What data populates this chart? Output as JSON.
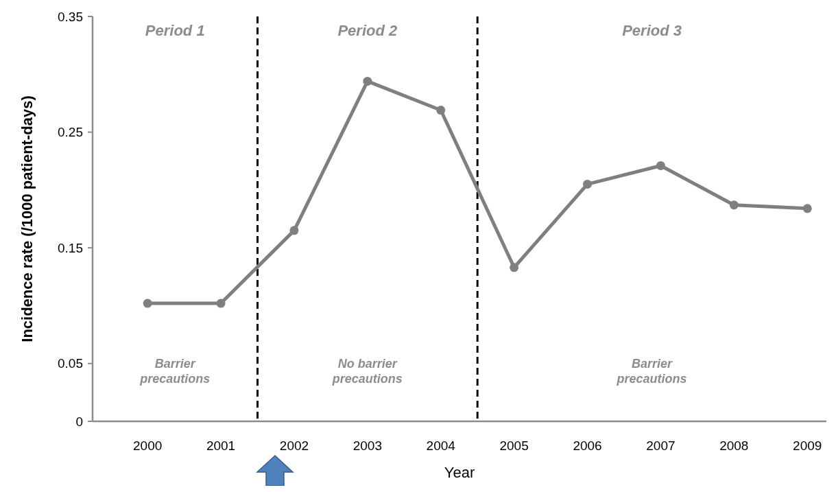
{
  "chart_data": {
    "type": "line",
    "xlabel": "Year",
    "ylabel": "Incidence rate (/1000 patient-days)",
    "x": [
      2000,
      2001,
      2002,
      2003,
      2004,
      2005,
      2006,
      2007,
      2008,
      2009
    ],
    "xlim": [
      1999.25,
      2009.26
    ],
    "xticks": [
      2000,
      2001,
      2002,
      2003,
      2004,
      2005,
      2006,
      2007,
      2008,
      2009
    ],
    "ylim": [
      0,
      0.35
    ],
    "yticks": [
      0,
      0.05,
      0.15,
      0.25,
      0.35
    ],
    "series": [
      {
        "color": "#7f7f7f",
        "values": [
          0.102,
          0.102,
          0.165,
          0.294,
          0.269,
          0.133,
          0.205,
          0.221,
          0.187,
          0.184
        ]
      }
    ],
    "marker": "circle",
    "line_style": "solid",
    "grid": false,
    "ref_lines": [
      {
        "axis": "x",
        "value": 2001.5,
        "line_style": "dashed",
        "color": "#000000"
      },
      {
        "axis": "x",
        "value": 2004.5,
        "line_style": "dashed",
        "color": "#000000"
      }
    ],
    "annotations": [
      "Period 1",
      "Period 2",
      "Period 3",
      "Barrier\nprecautions",
      "No barrier\nprecautions",
      "Barrier\nprecautions"
    ]
  }
}
